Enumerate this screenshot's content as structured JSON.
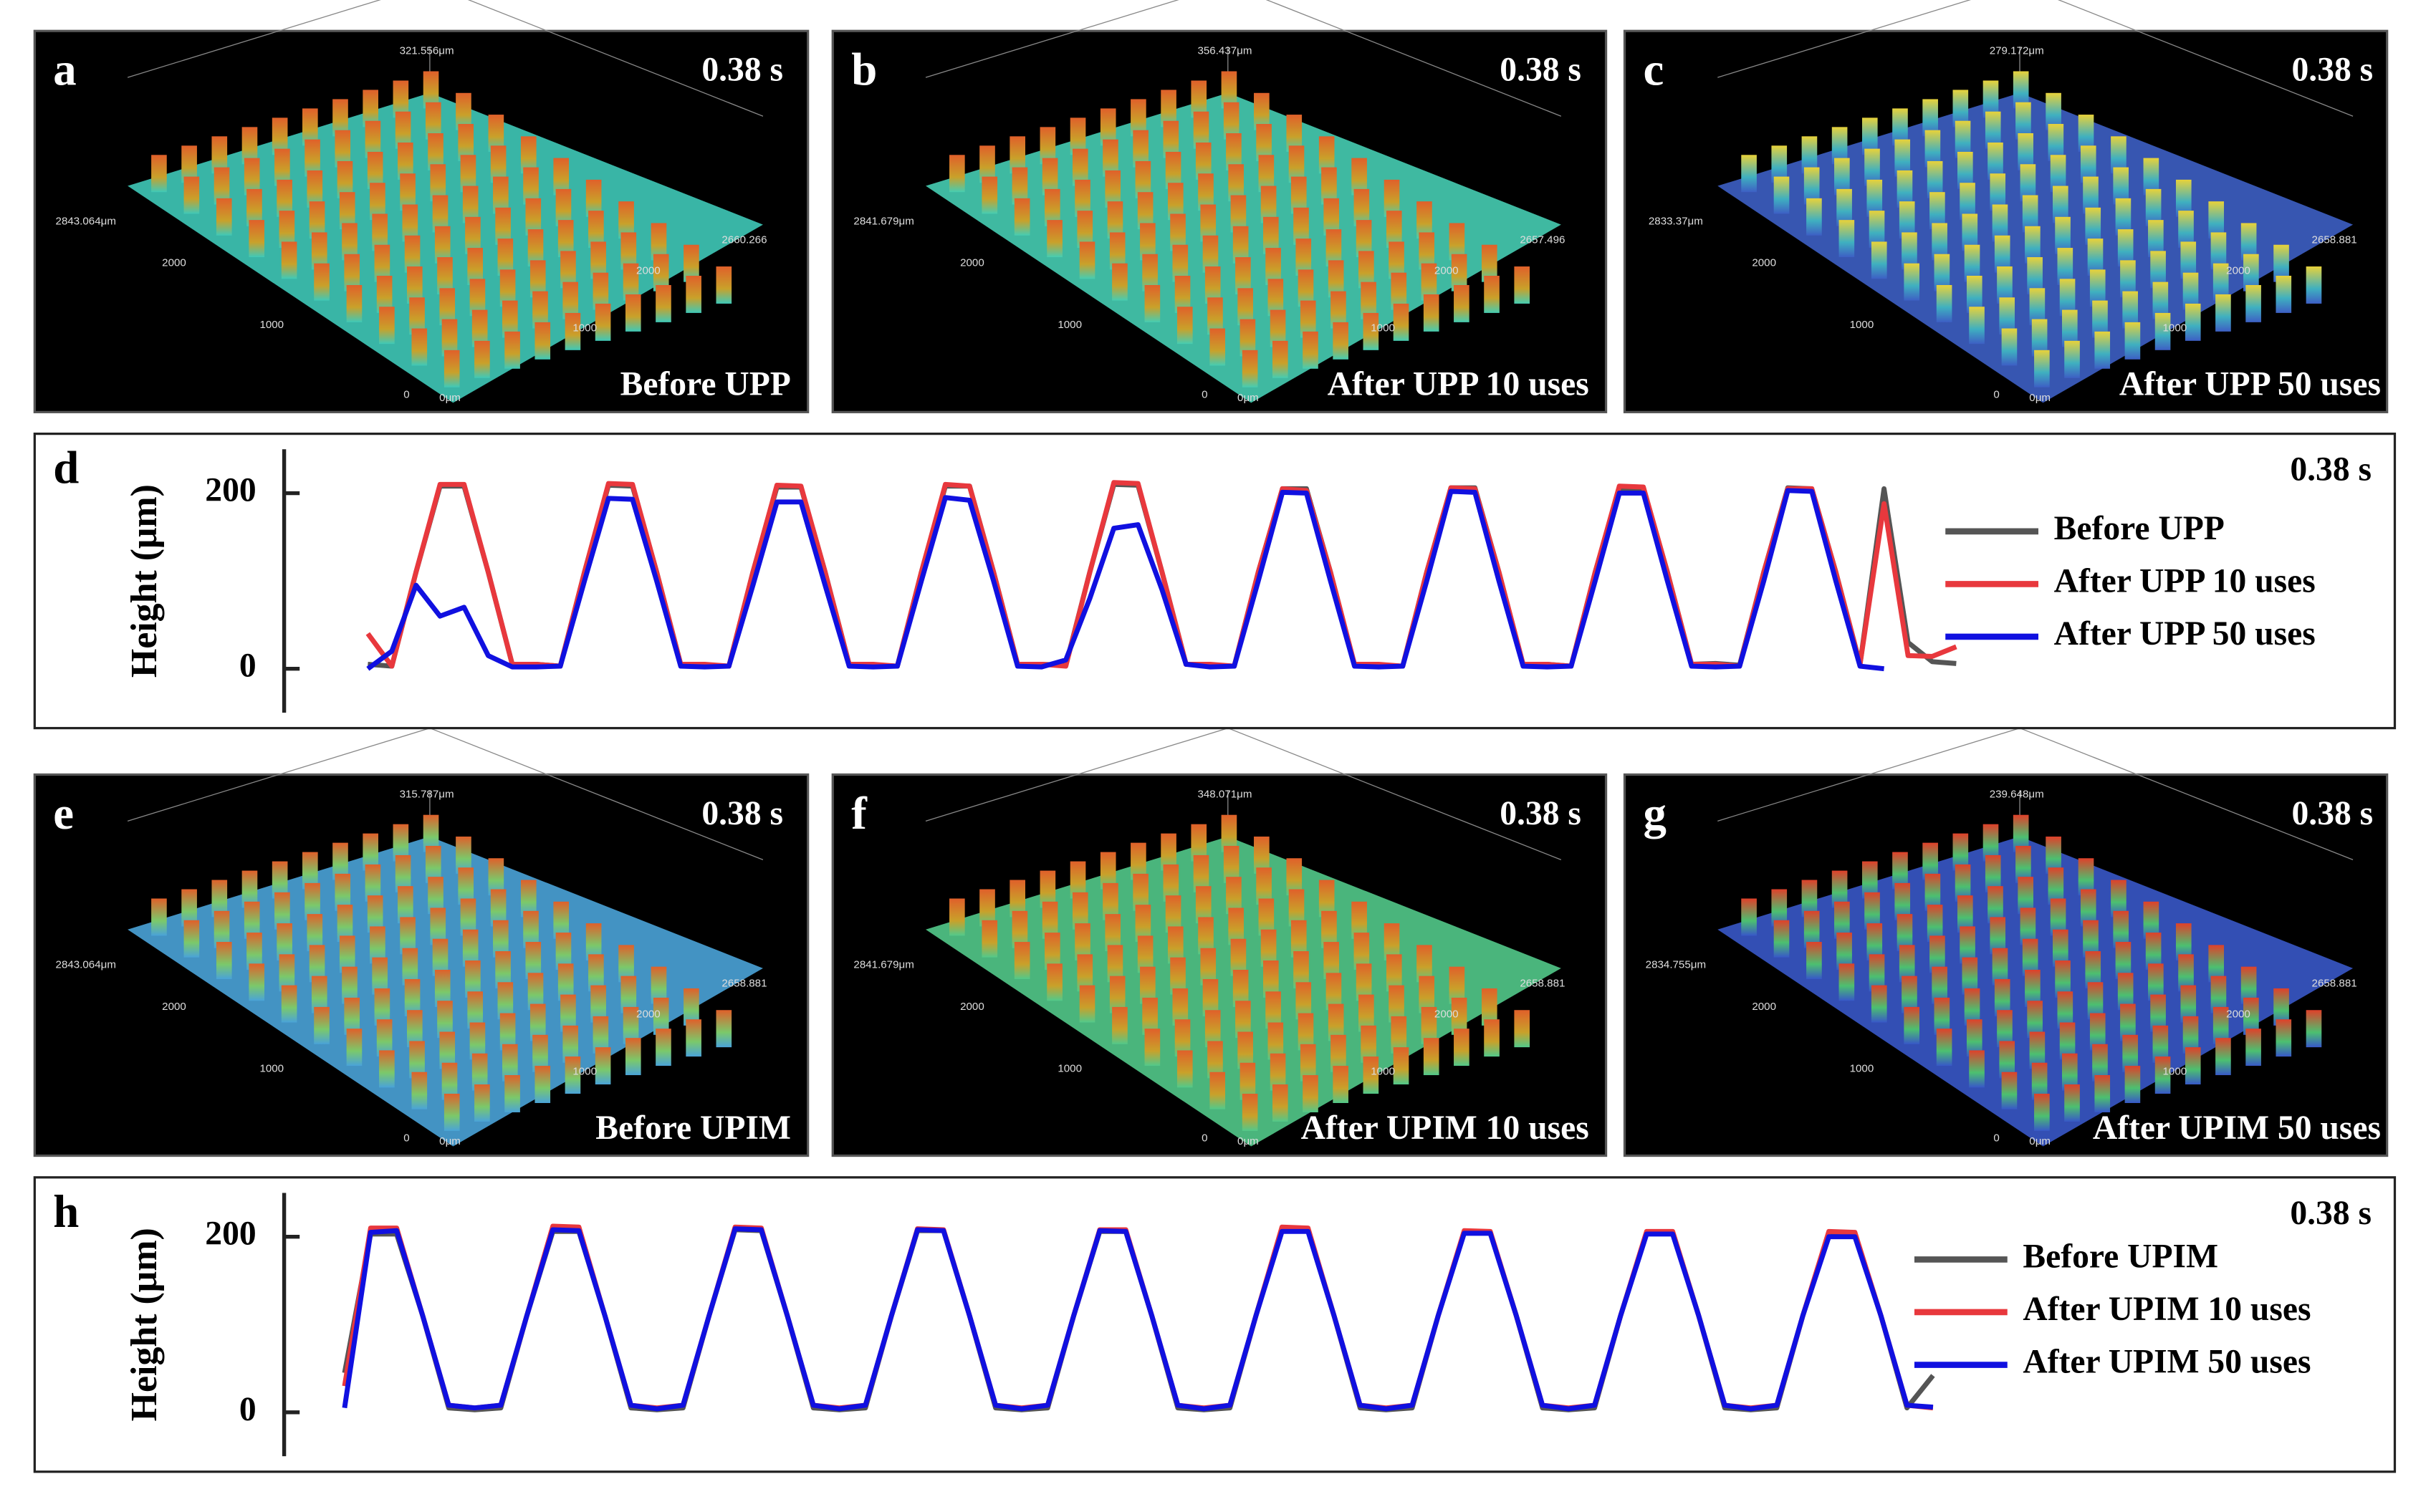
{
  "panels": [
    {
      "letter": "a",
      "time": "0.38 s",
      "caption": "Before UPP",
      "z_label": "321.556μm",
      "y_labels": [
        "2843.064μm",
        "2000",
        "1000",
        "0"
      ],
      "x_labels": [
        "0μm",
        "1000",
        "2000",
        "2660.266"
      ]
    },
    {
      "letter": "b",
      "time": "0.38 s",
      "caption": "After UPP 10 uses",
      "z_label": "356.437μm",
      "y_labels": [
        "2841.679μm",
        "2000",
        "1000",
        "0"
      ],
      "x_labels": [
        "0μm",
        "1000",
        "2000",
        "2657.496"
      ]
    },
    {
      "letter": "c",
      "time": "0.38 s",
      "caption": "After UPP 50 uses",
      "z_label": "279.172μm",
      "y_labels": [
        "2833.37μm",
        "2000",
        "1000",
        "0"
      ],
      "x_labels": [
        "0μm",
        "1000",
        "2000",
        "2658.881"
      ]
    },
    {
      "letter": "e",
      "time": "0.38 s",
      "caption": "Before UPIM",
      "z_label": "315.787μm",
      "y_labels": [
        "2843.064μm",
        "2000",
        "1000",
        "0"
      ],
      "x_labels": [
        "0μm",
        "1000",
        "2000",
        "2658.881"
      ]
    },
    {
      "letter": "f",
      "time": "0.38 s",
      "caption": "After UPIM 10 uses",
      "z_label": "348.071μm",
      "y_labels": [
        "2841.679μm",
        "2000",
        "1000",
        "0"
      ],
      "x_labels": [
        "0μm",
        "1000",
        "2000",
        "2658.881"
      ]
    },
    {
      "letter": "g",
      "time": "0.38 s",
      "caption": "After UPIM 50 uses",
      "z_label": "239.648μm",
      "y_labels": [
        "2834.755μm",
        "2000",
        "1000",
        "0"
      ],
      "x_labels": [
        "0μm",
        "1000",
        "2000",
        "2658.881"
      ]
    }
  ],
  "chart_data": [
    {
      "type": "line",
      "label": "d",
      "annotation": "0.38 s",
      "ylabel": "Height (μm)",
      "ylim": [
        -50,
        250
      ],
      "yticks": [
        0,
        200
      ],
      "legend": "right",
      "series": [
        {
          "name": "Before UPP",
          "color": "#555555",
          "values": [
            5,
            3,
            110,
            208,
            208,
            110,
            5,
            5,
            3,
            110,
            209,
            208,
            110,
            5,
            4,
            3,
            110,
            207,
            207,
            110,
            5,
            4,
            3,
            110,
            208,
            208,
            110,
            5,
            5,
            4,
            110,
            210,
            209,
            110,
            5,
            4,
            3,
            110,
            205,
            205,
            110,
            4,
            4,
            3,
            110,
            206,
            206,
            110,
            4,
            5,
            3,
            110,
            205,
            205,
            110,
            5,
            6,
            4,
            110,
            206,
            205,
            110,
            5,
            205,
            30,
            8,
            6
          ]
        },
        {
          "name": "After UPP 10 uses",
          "color": "#e8383d",
          "values": [
            40,
            3,
            110,
            210,
            210,
            110,
            5,
            5,
            3,
            110,
            211,
            210,
            110,
            5,
            5,
            3,
            110,
            209,
            208,
            110,
            5,
            5,
            3,
            110,
            210,
            208,
            110,
            5,
            5,
            3,
            110,
            212,
            211,
            110,
            5,
            5,
            3,
            110,
            205,
            203,
            110,
            5,
            5,
            3,
            110,
            206,
            205,
            110,
            5,
            5,
            3,
            110,
            208,
            207,
            110,
            5,
            5,
            3,
            110,
            205,
            205,
            110,
            5,
            188,
            15,
            14,
            25
          ]
        },
        {
          "name": "After UPP 50 uses",
          "color": "#1010e0",
          "values": [
            0,
            20,
            95,
            60,
            70,
            15,
            2,
            2,
            3,
            100,
            194,
            193,
            100,
            3,
            2,
            3,
            95,
            190,
            190,
            95,
            3,
            2,
            3,
            100,
            195,
            192,
            100,
            3,
            2,
            10,
            80,
            160,
            164,
            90,
            5,
            2,
            3,
            100,
            201,
            200,
            100,
            3,
            2,
            3,
            100,
            202,
            201,
            100,
            3,
            2,
            3,
            100,
            200,
            200,
            100,
            3,
            2,
            3,
            100,
            203,
            202,
            100,
            3,
            0,
            null,
            null,
            null
          ]
        }
      ]
    },
    {
      "type": "line",
      "label": "h",
      "annotation": "0.38 s",
      "ylabel": "Height (μm)",
      "ylim": [
        -50,
        250
      ],
      "yticks": [
        0,
        200
      ],
      "legend": "right",
      "series": [
        {
          "name": "Before UPIM",
          "color": "#555555",
          "values": [
            45,
            203,
            203,
            110,
            5,
            3,
            5,
            110,
            206,
            206,
            110,
            5,
            3,
            5,
            110,
            208,
            207,
            110,
            5,
            3,
            5,
            110,
            207,
            207,
            110,
            5,
            3,
            5,
            110,
            206,
            206,
            110,
            5,
            3,
            5,
            110,
            208,
            207,
            110,
            5,
            3,
            5,
            110,
            205,
            205,
            110,
            5,
            3,
            5,
            110,
            205,
            205,
            110,
            5,
            3,
            5,
            110,
            203,
            203,
            110,
            5,
            42
          ]
        },
        {
          "name": "After UPIM 10 uses",
          "color": "#e8383d",
          "values": [
            30,
            210,
            210,
            110,
            8,
            5,
            8,
            110,
            212,
            211,
            110,
            8,
            5,
            8,
            110,
            211,
            210,
            110,
            8,
            5,
            8,
            110,
            209,
            208,
            110,
            8,
            5,
            8,
            110,
            208,
            208,
            110,
            8,
            5,
            8,
            110,
            211,
            210,
            110,
            8,
            5,
            8,
            110,
            207,
            206,
            110,
            8,
            5,
            8,
            110,
            206,
            206,
            110,
            8,
            5,
            8,
            110,
            206,
            205,
            110,
            8,
            5
          ]
        },
        {
          "name": "After UPIM 50 uses",
          "color": "#1010e0",
          "values": [
            5,
            205,
            207,
            110,
            8,
            5,
            8,
            110,
            208,
            207,
            110,
            8,
            4,
            8,
            110,
            209,
            208,
            110,
            8,
            4,
            8,
            110,
            208,
            207,
            110,
            8,
            4,
            8,
            110,
            207,
            206,
            110,
            8,
            4,
            8,
            110,
            206,
            206,
            110,
            8,
            4,
            8,
            110,
            204,
            204,
            110,
            8,
            4,
            8,
            110,
            203,
            203,
            110,
            8,
            4,
            8,
            110,
            200,
            200,
            110,
            8,
            6
          ]
        }
      ]
    }
  ]
}
